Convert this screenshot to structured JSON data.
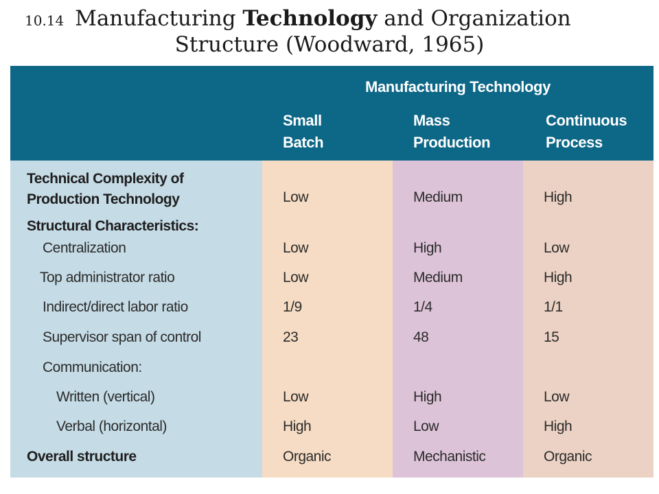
{
  "slide": {
    "number": "10.14",
    "title_part1": "Manufacturing",
    "title_bold": "Technology",
    "title_part2": "and Organization",
    "title_line2": "Structure (Woodward, 1965)"
  },
  "table": {
    "group_header": "Manufacturing Technology",
    "columns": [
      {
        "line1": "Small",
        "line2": "Batch"
      },
      {
        "line1": "Mass",
        "line2": "Production"
      },
      {
        "line1": "Continuous",
        "line2": "Process"
      }
    ],
    "rows": [
      {
        "label_line1": "Technical Complexity of",
        "label_line2": "Production Technology",
        "values": [
          "Low",
          "Medium",
          "High"
        ]
      },
      {
        "label": "Structural Characteristics:"
      },
      {
        "label": "Centralization",
        "values": [
          "Low",
          "High",
          "Low"
        ]
      },
      {
        "label": "Top administrator ratio",
        "values": [
          "Low",
          "Medium",
          "High"
        ]
      },
      {
        "label": "Indirect/direct labor ratio",
        "values": [
          "1/9",
          "1/4",
          "1/1"
        ]
      },
      {
        "label": "Supervisor span of control",
        "values": [
          "23",
          "48",
          "15"
        ]
      },
      {
        "label": "Communication:"
      },
      {
        "label": "Written (vertical)",
        "values": [
          "Low",
          "High",
          "Low"
        ]
      },
      {
        "label": "Verbal (horizontal)",
        "values": [
          "High",
          "Low",
          "High"
        ]
      },
      {
        "label": "Overall structure",
        "values": [
          "Organic",
          "Mechanistic",
          "Organic"
        ]
      }
    ]
  }
}
